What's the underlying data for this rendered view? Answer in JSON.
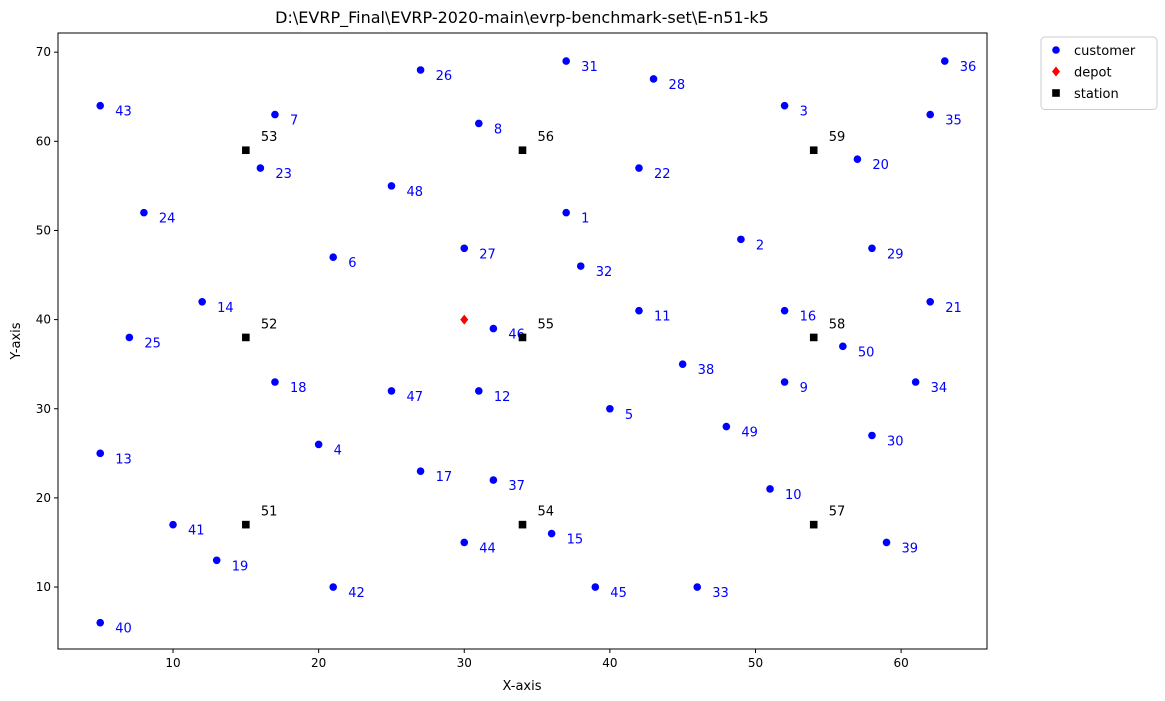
{
  "chart_data": {
    "type": "scatter",
    "title": "D:\\EVRP_Final\\EVRP-2020-main\\evrp-benchmark-set\\E-n51-k5",
    "xlabel": "X-axis",
    "ylabel": "Y-axis",
    "xlim": [
      2.1,
      65.9
    ],
    "ylim": [
      3.05,
      72.15
    ],
    "xticks": [
      10,
      20,
      30,
      40,
      50,
      60
    ],
    "yticks": [
      10,
      20,
      30,
      40,
      50,
      60,
      70
    ],
    "grid": false,
    "legend_position": "upper-right-outside",
    "series": [
      {
        "name": "customer",
        "marker": "circle",
        "color": "#0000ff",
        "label_color": "#0000ff",
        "points": [
          {
            "id": "1",
            "x": 37,
            "y": 52
          },
          {
            "id": "2",
            "x": 49,
            "y": 49
          },
          {
            "id": "3",
            "x": 52,
            "y": 64
          },
          {
            "id": "4",
            "x": 20,
            "y": 26
          },
          {
            "id": "5",
            "x": 40,
            "y": 30
          },
          {
            "id": "6",
            "x": 21,
            "y": 47
          },
          {
            "id": "7",
            "x": 17,
            "y": 63
          },
          {
            "id": "8",
            "x": 31,
            "y": 62
          },
          {
            "id": "9",
            "x": 52,
            "y": 33
          },
          {
            "id": "10",
            "x": 51,
            "y": 21
          },
          {
            "id": "11",
            "x": 42,
            "y": 41
          },
          {
            "id": "12",
            "x": 31,
            "y": 32
          },
          {
            "id": "13",
            "x": 5,
            "y": 25
          },
          {
            "id": "14",
            "x": 12,
            "y": 42
          },
          {
            "id": "15",
            "x": 36,
            "y": 16
          },
          {
            "id": "16",
            "x": 52,
            "y": 41
          },
          {
            "id": "17",
            "x": 27,
            "y": 23
          },
          {
            "id": "18",
            "x": 17,
            "y": 33
          },
          {
            "id": "19",
            "x": 13,
            "y": 13
          },
          {
            "id": "20",
            "x": 57,
            "y": 58
          },
          {
            "id": "21",
            "x": 62,
            "y": 42
          },
          {
            "id": "22",
            "x": 42,
            "y": 57
          },
          {
            "id": "23",
            "x": 16,
            "y": 57
          },
          {
            "id": "24",
            "x": 8,
            "y": 52
          },
          {
            "id": "25",
            "x": 7,
            "y": 38
          },
          {
            "id": "26",
            "x": 27,
            "y": 68
          },
          {
            "id": "27",
            "x": 30,
            "y": 48
          },
          {
            "id": "28",
            "x": 43,
            "y": 67
          },
          {
            "id": "29",
            "x": 58,
            "y": 48
          },
          {
            "id": "30",
            "x": 58,
            "y": 27
          },
          {
            "id": "31",
            "x": 37,
            "y": 69
          },
          {
            "id": "32",
            "x": 38,
            "y": 46
          },
          {
            "id": "33",
            "x": 46,
            "y": 10
          },
          {
            "id": "34",
            "x": 61,
            "y": 33
          },
          {
            "id": "35",
            "x": 62,
            "y": 63
          },
          {
            "id": "36",
            "x": 63,
            "y": 69
          },
          {
            "id": "37",
            "x": 32,
            "y": 22
          },
          {
            "id": "38",
            "x": 45,
            "y": 35
          },
          {
            "id": "39",
            "x": 59,
            "y": 15
          },
          {
            "id": "40",
            "x": 5,
            "y": 6
          },
          {
            "id": "41",
            "x": 10,
            "y": 17
          },
          {
            "id": "42",
            "x": 21,
            "y": 10
          },
          {
            "id": "43",
            "x": 5,
            "y": 64
          },
          {
            "id": "44",
            "x": 30,
            "y": 15
          },
          {
            "id": "45",
            "x": 39,
            "y": 10
          },
          {
            "id": "46",
            "x": 32,
            "y": 39
          },
          {
            "id": "47",
            "x": 25,
            "y": 32
          },
          {
            "id": "48",
            "x": 25,
            "y": 55
          },
          {
            "id": "49",
            "x": 48,
            "y": 28
          },
          {
            "id": "50",
            "x": 56,
            "y": 37
          }
        ]
      },
      {
        "name": "depot",
        "marker": "diamond",
        "color": "#ff0000",
        "points": [
          {
            "x": 30,
            "y": 40
          }
        ]
      },
      {
        "name": "station",
        "marker": "square",
        "color": "#000000",
        "label_color": "#000000",
        "points": [
          {
            "id": "51",
            "x": 15,
            "y": 17
          },
          {
            "id": "52",
            "x": 15,
            "y": 38
          },
          {
            "id": "53",
            "x": 15,
            "y": 59
          },
          {
            "id": "54",
            "x": 34,
            "y": 17
          },
          {
            "id": "55",
            "x": 34,
            "y": 38
          },
          {
            "id": "56",
            "x": 34,
            "y": 59
          },
          {
            "id": "57",
            "x": 54,
            "y": 17
          },
          {
            "id": "58",
            "x": 54,
            "y": 38
          },
          {
            "id": "59",
            "x": 54,
            "y": 59
          }
        ]
      }
    ]
  }
}
